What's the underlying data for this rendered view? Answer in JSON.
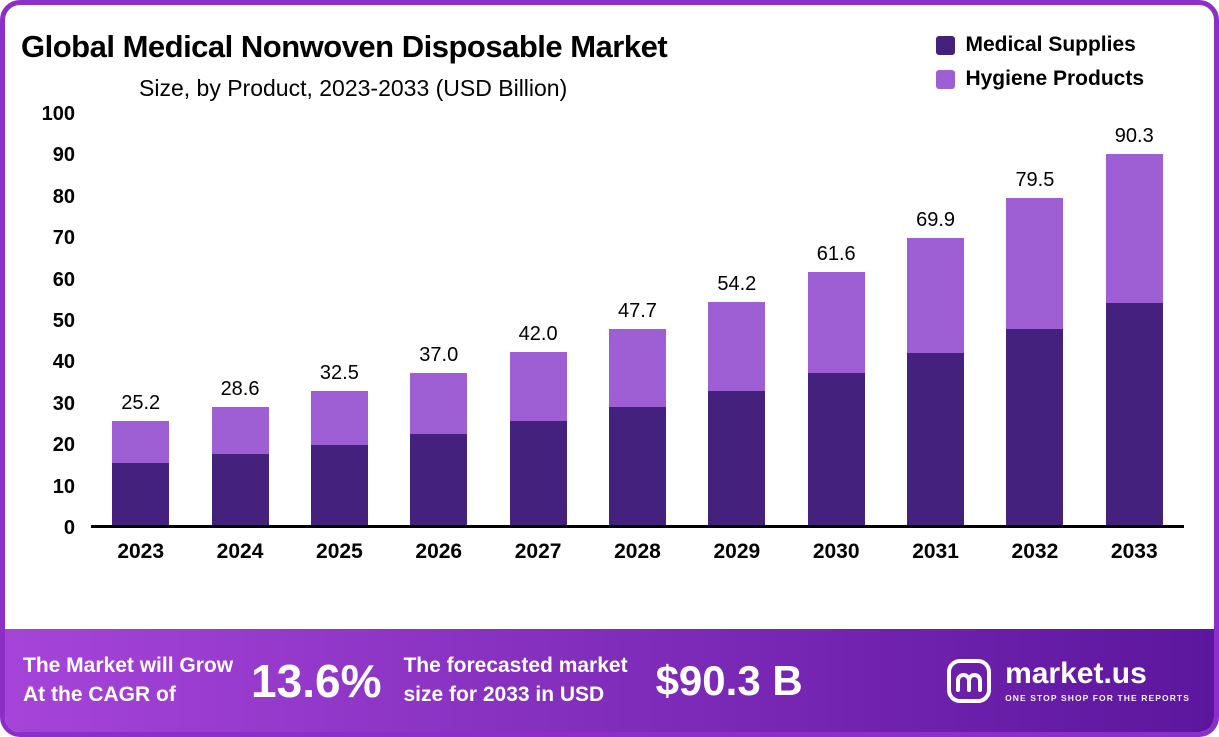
{
  "header": {
    "title": "Global Medical Nonwoven Disposable Market",
    "subtitle": "Size, by Product, 2023-2033 (USD Billion)"
  },
  "legend": [
    {
      "label": "Medical Supplies",
      "color": "#45217E"
    },
    {
      "label": "Hygiene Products",
      "color": "#9E5FD4"
    }
  ],
  "chart_data": {
    "type": "bar",
    "stacked": true,
    "title": "Global Medical Nonwoven Disposable Market Size, by Product, 2023-2033 (USD Billion)",
    "categories": [
      "2023",
      "2024",
      "2025",
      "2026",
      "2027",
      "2028",
      "2029",
      "2030",
      "2031",
      "2032",
      "2033"
    ],
    "series": [
      {
        "name": "Medical Supplies",
        "color": "#45217E",
        "values": [
          15.1,
          17.2,
          19.5,
          22.2,
          25.2,
          28.6,
          32.5,
          36.9,
          41.9,
          47.6,
          54.1
        ]
      },
      {
        "name": "Hygiene Products",
        "color": "#9E5FD4",
        "values": [
          10.1,
          11.4,
          13.0,
          14.8,
          16.8,
          19.1,
          21.7,
          24.7,
          28.0,
          31.9,
          36.2
        ]
      }
    ],
    "totals": [
      25.2,
      28.6,
      32.5,
      37.0,
      42.0,
      47.7,
      54.2,
      61.6,
      69.9,
      79.5,
      90.3
    ],
    "ylabel": "",
    "xlabel": "",
    "ylim": [
      0,
      100
    ],
    "yticks": [
      0,
      10,
      20,
      30,
      40,
      50,
      60,
      70,
      80,
      90,
      100
    ],
    "grid": false,
    "legend_position": "top-right"
  },
  "footer": {
    "cagr_label_lines": [
      "The Market will Grow",
      "At the CAGR of"
    ],
    "cagr_value": "13.6%",
    "forecast_label_lines": [
      "The forecasted market",
      "size for 2033 in USD"
    ],
    "forecast_value": "$90.3 B",
    "brand": {
      "name": "market.us",
      "tagline": "ONE STOP SHOP FOR THE REPORTS"
    }
  },
  "colors": {
    "frame_border": "#8C2FC8",
    "banner_gradient_start": "#A644D9",
    "banner_gradient_end": "#5C169E",
    "axis_line": "#000000"
  }
}
